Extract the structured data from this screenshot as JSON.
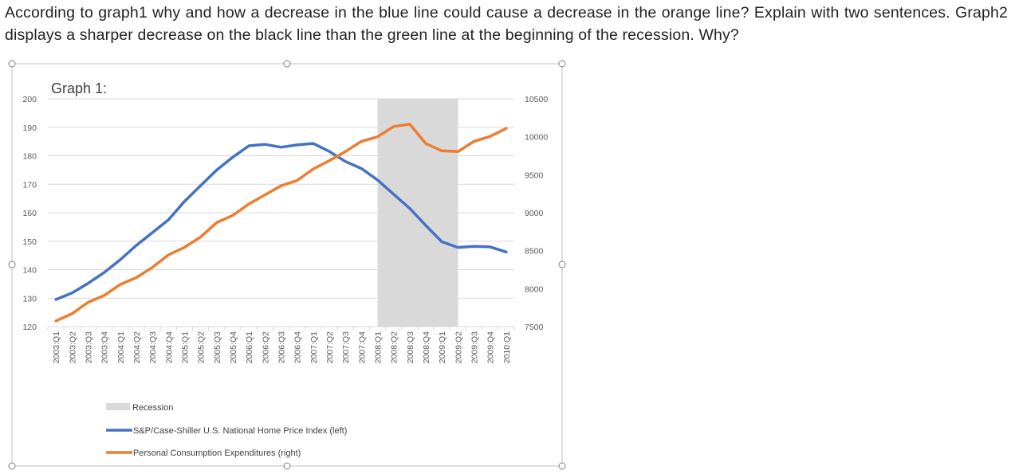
{
  "question": "According to graph1 why and how a decrease in the blue line could cause a decrease in the orange line? Explain with two sentences. Graph2 displays a sharper decrease on the black line than the green line at the beginning of the recession. Why?",
  "chart_data": {
    "type": "line",
    "title": "Graph 1:",
    "categories": [
      "2003:Q1",
      "2003:Q2",
      "2003:Q3",
      "2003:Q4",
      "2004:Q1",
      "2004:Q2",
      "2004:Q3",
      "2004:Q4",
      "2005:Q1",
      "2005:Q2",
      "2005:Q3",
      "2005:Q4",
      "2006:Q1",
      "2006:Q2",
      "2006:Q3",
      "2006:Q4",
      "2007:Q1",
      "2007:Q2",
      "2007:Q3",
      "2007:Q4",
      "2008:Q1",
      "2008:Q2",
      "2008:Q3",
      "2008:Q4",
      "2009:Q1",
      "2009:Q2",
      "2009:Q3",
      "2009:Q4",
      "2010:Q1"
    ],
    "left_axis": {
      "ylim": [
        120,
        200
      ],
      "ticks": [
        "120",
        "130",
        "140",
        "150",
        "160",
        "170",
        "180",
        "190",
        "200"
      ]
    },
    "right_axis": {
      "ylim": [
        7500,
        10500
      ],
      "ticks": [
        "7500",
        "8000",
        "8500",
        "9000",
        "9500",
        "10000",
        "10500"
      ]
    },
    "grid": true,
    "legend_position": "bottom",
    "recession": {
      "name": "Recession",
      "start": "2008:Q1",
      "end": "2009:Q2",
      "color": "#d9d9d9"
    },
    "series": [
      {
        "name": "S&P/Case-Shiller U.S. National Home Price Index (left)",
        "axis": "left",
        "color": "#4472c4",
        "values": [
          129.5,
          131.8,
          135.2,
          139,
          143.5,
          148.5,
          153,
          157.5,
          164,
          169.5,
          175,
          179.5,
          183.5,
          184,
          183,
          183.8,
          184.3,
          181.5,
          178,
          175.5,
          171.5,
          166.5,
          161.5,
          155.5,
          149.8,
          147.8,
          148.2,
          148,
          146.2
        ]
      },
      {
        "name": "Personal Consumption Expenditures (right)",
        "axis": "right",
        "color": "#ed7d31",
        "values": [
          7575,
          7670,
          7820,
          7910,
          8055,
          8145,
          8280,
          8445,
          8545,
          8680,
          8870,
          8965,
          9115,
          9235,
          9355,
          9425,
          9575,
          9685,
          9805,
          9940,
          10000,
          10135,
          10165,
          9910,
          9815,
          9805,
          9940,
          10005,
          10110
        ]
      }
    ]
  }
}
